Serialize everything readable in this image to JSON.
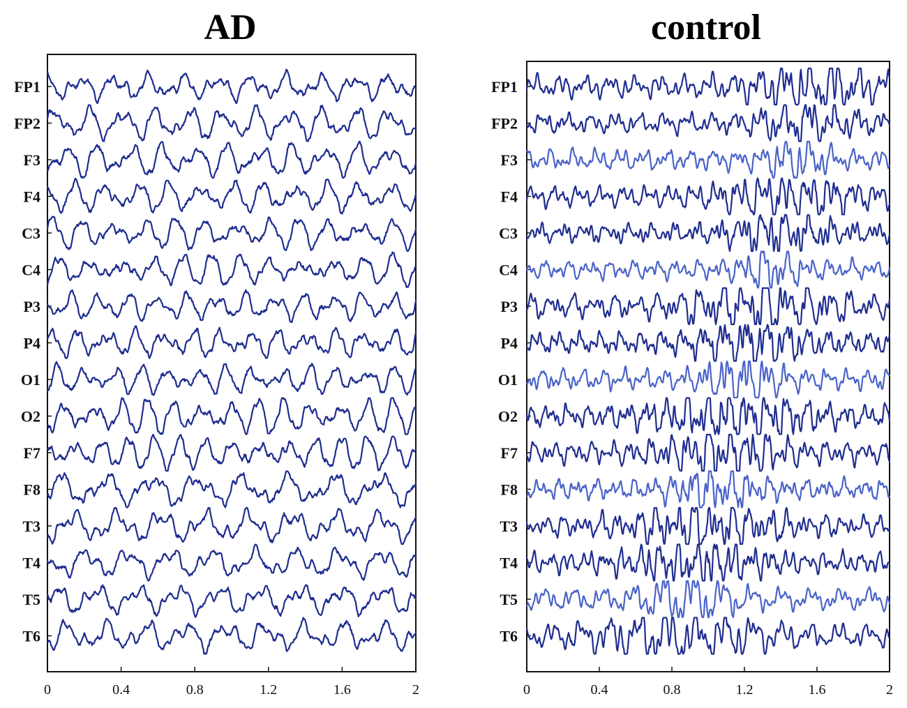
{
  "colors": {
    "trace": "#1f2d8f",
    "trace_light": "#4a63c8",
    "axis": "#111111"
  },
  "chart_data": [
    {
      "type": "line",
      "title": "AD",
      "xlabel": "",
      "ylabel": "",
      "xlim": [
        0,
        2
      ],
      "xticks": [
        "0",
        "0.4",
        "0.8",
        "1.2",
        "1.6",
        "2"
      ],
      "xtick_values": [
        0,
        0.4,
        0.8,
        1.2,
        1.6,
        2
      ],
      "grid": false,
      "channels": [
        "FP1",
        "FP2",
        "F3",
        "F4",
        "C3",
        "C4",
        "P3",
        "P4",
        "O1",
        "O2",
        "F7",
        "F8",
        "T3",
        "T4",
        "T5",
        "T6"
      ],
      "signal_character": "slow high-amplitude rhythm"
    },
    {
      "type": "line",
      "title": "control",
      "xlabel": "",
      "ylabel": "",
      "xlim": [
        0,
        2
      ],
      "xticks": [
        "0",
        "0.4",
        "0.8",
        "1.2",
        "1.6",
        "2"
      ],
      "xtick_values": [
        0,
        0.4,
        0.8,
        1.2,
        1.6,
        2
      ],
      "grid": false,
      "channels": [
        "FP1",
        "FP2",
        "F3",
        "F4",
        "C3",
        "C4",
        "P3",
        "P4",
        "O1",
        "O2",
        "F7",
        "F8",
        "T3",
        "T4",
        "T5",
        "T6"
      ],
      "signal_character": "fast low-amplitude activity with bursts"
    }
  ]
}
